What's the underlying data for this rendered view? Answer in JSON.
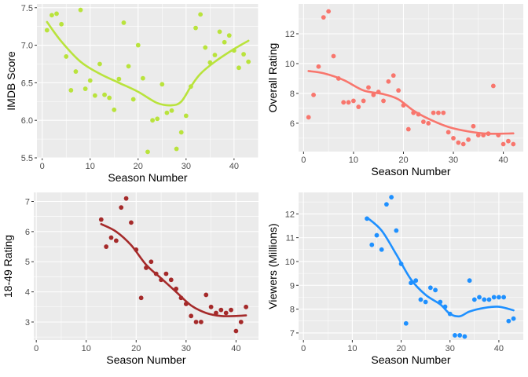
{
  "chart_data": [
    {
      "type": "scatter",
      "xlabel": "Season Number",
      "ylabel": "IMDB Score",
      "xlim": [
        -1.1,
        45.1
      ],
      "ylim": [
        5.5,
        7.55
      ],
      "xticks": [
        0,
        10,
        20,
        30,
        40
      ],
      "yticks": [
        5.5,
        6.0,
        6.5,
        7.0,
        7.5
      ],
      "ytick_labels": [
        "5.5",
        "6.0",
        "6.5",
        "7.0",
        "7.5"
      ],
      "xtick_labels": [
        "0",
        "10",
        "20",
        "30",
        "40"
      ],
      "color": "#b9e33c",
      "grid": true,
      "points": [
        [
          1,
          7.2
        ],
        [
          2,
          7.4
        ],
        [
          3,
          7.42
        ],
        [
          4,
          7.28
        ],
        [
          5,
          6.85
        ],
        [
          6,
          6.4
        ],
        [
          7,
          6.65
        ],
        [
          8,
          7.47
        ],
        [
          9,
          6.42
        ],
        [
          10,
          6.53
        ],
        [
          11,
          6.33
        ],
        [
          12,
          6.75
        ],
        [
          13,
          6.34
        ],
        [
          14,
          6.3
        ],
        [
          15,
          6.14
        ],
        [
          16,
          6.55
        ],
        [
          17,
          7.3
        ],
        [
          18,
          6.72
        ],
        [
          19,
          6.28
        ],
        [
          20,
          7.0
        ],
        [
          21,
          6.56
        ],
        [
          22,
          5.58
        ],
        [
          23,
          6.0
        ],
        [
          24,
          6.02
        ],
        [
          25,
          6.48
        ],
        [
          26,
          6.1
        ],
        [
          27,
          6.13
        ],
        [
          28,
          5.62
        ],
        [
          29,
          5.84
        ],
        [
          30,
          6.06
        ],
        [
          31,
          6.45
        ],
        [
          32,
          7.23
        ],
        [
          33,
          7.41
        ],
        [
          34,
          6.97
        ],
        [
          35,
          6.77
        ],
        [
          36,
          6.87
        ],
        [
          37,
          7.18
        ],
        [
          38,
          7.04
        ],
        [
          39,
          7.13
        ],
        [
          40,
          6.93
        ],
        [
          41,
          6.7
        ],
        [
          42,
          6.88
        ],
        [
          43,
          6.78
        ]
      ],
      "trend": [
        [
          1,
          7.31
        ],
        [
          4,
          7.05
        ],
        [
          8,
          6.78
        ],
        [
          12,
          6.62
        ],
        [
          16,
          6.5
        ],
        [
          20,
          6.38
        ],
        [
          24,
          6.23
        ],
        [
          27,
          6.2
        ],
        [
          29,
          6.25
        ],
        [
          31,
          6.45
        ],
        [
          33,
          6.62
        ],
        [
          36,
          6.78
        ],
        [
          40,
          6.95
        ],
        [
          43,
          7.06
        ]
      ]
    },
    {
      "type": "scatter",
      "xlabel": "Season Number",
      "ylabel": "Overall Rating",
      "xlim": [
        -1.0,
        44.0
      ],
      "ylim": [
        4.1,
        14.0
      ],
      "xticks": [
        0,
        10,
        20,
        30,
        40
      ],
      "yticks": [
        6,
        8,
        10,
        12
      ],
      "ytick_labels": [
        "6",
        "8",
        "10",
        "12"
      ],
      "xtick_labels": [
        "0",
        "10",
        "20",
        "30",
        "40"
      ],
      "color": "#f8766d",
      "grid": true,
      "points": [
        [
          1,
          6.4
        ],
        [
          2,
          7.9
        ],
        [
          3,
          9.8
        ],
        [
          4,
          13.1
        ],
        [
          5,
          13.5
        ],
        [
          6,
          10.5
        ],
        [
          7,
          9.0
        ],
        [
          8,
          7.4
        ],
        [
          9,
          7.4
        ],
        [
          10,
          7.5
        ],
        [
          11,
          7.1
        ],
        [
          12,
          7.5
        ],
        [
          13,
          8.4
        ],
        [
          14,
          7.9
        ],
        [
          15,
          8.1
        ],
        [
          16,
          7.5
        ],
        [
          17,
          8.8
        ],
        [
          18,
          9.2
        ],
        [
          19,
          8.2
        ],
        [
          20,
          7.2
        ],
        [
          21,
          5.6
        ],
        [
          22,
          6.7
        ],
        [
          23,
          6.6
        ],
        [
          24,
          6.1
        ],
        [
          25,
          6.0
        ],
        [
          26,
          6.7
        ],
        [
          27,
          6.7
        ],
        [
          28,
          6.7
        ],
        [
          29,
          5.4
        ],
        [
          30,
          5.0
        ],
        [
          31,
          4.7
        ],
        [
          32,
          4.6
        ],
        [
          33,
          4.9
        ],
        [
          34,
          5.8
        ],
        [
          35,
          5.2
        ],
        [
          36,
          5.2
        ],
        [
          37,
          5.3
        ],
        [
          38,
          8.5
        ],
        [
          39,
          5.2
        ],
        [
          40,
          4.6
        ],
        [
          41,
          4.8
        ],
        [
          42,
          4.6
        ]
      ],
      "trend": [
        [
          1,
          9.5
        ],
        [
          4,
          9.35
        ],
        [
          8,
          8.9
        ],
        [
          12,
          8.2
        ],
        [
          16,
          7.95
        ],
        [
          19,
          7.6
        ],
        [
          22,
          6.85
        ],
        [
          25,
          6.3
        ],
        [
          29,
          5.75
        ],
        [
          33,
          5.45
        ],
        [
          37,
          5.3
        ],
        [
          42,
          5.32
        ]
      ]
    },
    {
      "type": "scatter",
      "xlabel": "Season Number",
      "ylabel": "18-49 Rating",
      "xlim": [
        -0.5,
        44.5
      ],
      "ylim": [
        2.4,
        7.3
      ],
      "xticks": [
        0,
        10,
        20,
        30,
        40
      ],
      "yticks": [
        3,
        4,
        5,
        6,
        7
      ],
      "ytick_labels": [
        "3",
        "4",
        "5",
        "6",
        "7"
      ],
      "xtick_labels": [
        "0",
        "10",
        "20",
        "30",
        "40"
      ],
      "color": "#a52a2a",
      "grid": true,
      "points": [
        [
          13,
          6.4
        ],
        [
          14,
          5.5
        ],
        [
          15,
          5.8
        ],
        [
          16,
          5.7
        ],
        [
          17,
          6.8
        ],
        [
          18,
          7.1
        ],
        [
          19,
          6.3
        ],
        [
          20,
          5.4
        ],
        [
          21,
          3.8
        ],
        [
          22,
          4.8
        ],
        [
          23,
          5.0
        ],
        [
          24,
          4.6
        ],
        [
          25,
          4.4
        ],
        [
          26,
          4.6
        ],
        [
          27,
          4.4
        ],
        [
          28,
          4.1
        ],
        [
          29,
          3.8
        ],
        [
          30,
          3.6
        ],
        [
          31,
          3.2
        ],
        [
          32,
          3.0
        ],
        [
          33,
          3.0
        ],
        [
          34,
          3.9
        ],
        [
          35,
          3.5
        ],
        [
          36,
          3.3
        ],
        [
          37,
          3.4
        ],
        [
          38,
          3.3
        ],
        [
          39,
          3.4
        ],
        [
          40,
          2.7
        ],
        [
          41,
          3.0
        ],
        [
          42,
          3.5
        ]
      ],
      "trend": [
        [
          13,
          6.25
        ],
        [
          16,
          6.0
        ],
        [
          19,
          5.55
        ],
        [
          22,
          4.9
        ],
        [
          25,
          4.45
        ],
        [
          28,
          4.0
        ],
        [
          31,
          3.55
        ],
        [
          34,
          3.3
        ],
        [
          37,
          3.2
        ],
        [
          40,
          3.2
        ],
        [
          42,
          3.22
        ]
      ]
    },
    {
      "type": "scatter",
      "xlabel": "Season Number",
      "ylabel": "Viewers (Millions)",
      "xlim": [
        -1.0,
        45.0
      ],
      "ylim": [
        6.7,
        12.9
      ],
      "xticks": [
        0,
        10,
        20,
        30,
        40
      ],
      "yticks": [
        7,
        8,
        9,
        10,
        11,
        12
      ],
      "ytick_labels": [
        "7",
        "8",
        "9",
        "10",
        "11",
        "12"
      ],
      "xtick_labels": [
        "0",
        "10",
        "20",
        "30",
        "40"
      ],
      "color": "#1e90ff",
      "grid": true,
      "points": [
        [
          13,
          11.8
        ],
        [
          14,
          10.7
        ],
        [
          15,
          11.1
        ],
        [
          16,
          10.5
        ],
        [
          17,
          12.4
        ],
        [
          18,
          12.7
        ],
        [
          19,
          11.3
        ],
        [
          20,
          9.9
        ],
        [
          21,
          7.4
        ],
        [
          22,
          9.1
        ],
        [
          23,
          9.2
        ],
        [
          24,
          8.4
        ],
        [
          25,
          8.3
        ],
        [
          26,
          8.9
        ],
        [
          27,
          8.8
        ],
        [
          28,
          8.3
        ],
        [
          29,
          8.1
        ],
        [
          30,
          7.8
        ],
        [
          31,
          6.9
        ],
        [
          32,
          6.9
        ],
        [
          33,
          6.85
        ],
        [
          34,
          9.2
        ],
        [
          35,
          8.4
        ],
        [
          36,
          8.5
        ],
        [
          37,
          8.4
        ],
        [
          38,
          8.4
        ],
        [
          39,
          8.5
        ],
        [
          40,
          8.5
        ],
        [
          41,
          8.5
        ],
        [
          42,
          7.5
        ],
        [
          43,
          7.6
        ]
      ],
      "trend": [
        [
          13,
          11.85
        ],
        [
          16,
          11.3
        ],
        [
          19,
          10.3
        ],
        [
          22,
          9.25
        ],
        [
          25,
          8.6
        ],
        [
          28,
          8.2
        ],
        [
          30,
          7.8
        ],
        [
          32,
          7.7
        ],
        [
          34,
          7.9
        ],
        [
          37,
          8.05
        ],
        [
          40,
          8.1
        ],
        [
          43,
          7.95
        ]
      ]
    }
  ]
}
